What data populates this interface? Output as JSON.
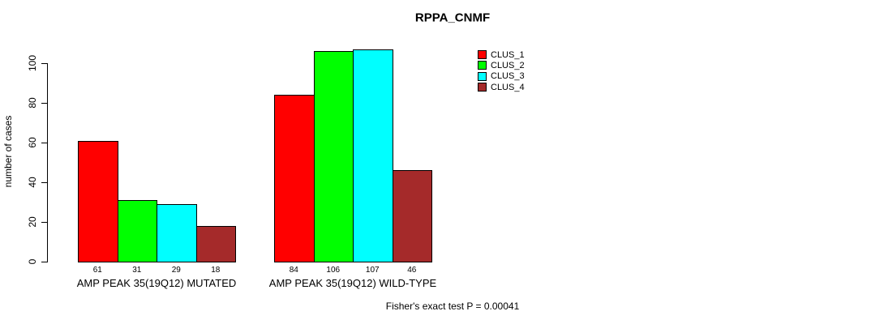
{
  "chart_data": {
    "type": "bar",
    "title": "RPPA_CNMF",
    "xlabel": "",
    "ylabel": "number of cases",
    "ylim": [
      0,
      110
    ],
    "yticks": [
      0,
      20,
      40,
      60,
      80,
      100
    ],
    "grid": false,
    "legend_position": "top-right",
    "bar_value_labels": true,
    "categories": [
      "AMP PEAK 35(19Q12) MUTATED",
      "AMP PEAK 35(19Q12) WILD-TYPE"
    ],
    "series": [
      {
        "name": "CLUS_1",
        "color": "#ff0000",
        "values": [
          61,
          84
        ]
      },
      {
        "name": "CLUS_2",
        "color": "#00ff00",
        "values": [
          31,
          106
        ]
      },
      {
        "name": "CLUS_3",
        "color": "#00ffff",
        "values": [
          29,
          107
        ]
      },
      {
        "name": "CLUS_4",
        "color": "#a52a2a",
        "values": [
          18,
          46
        ]
      }
    ],
    "annotation": "Fisher's exact test P = 0.00041"
  }
}
